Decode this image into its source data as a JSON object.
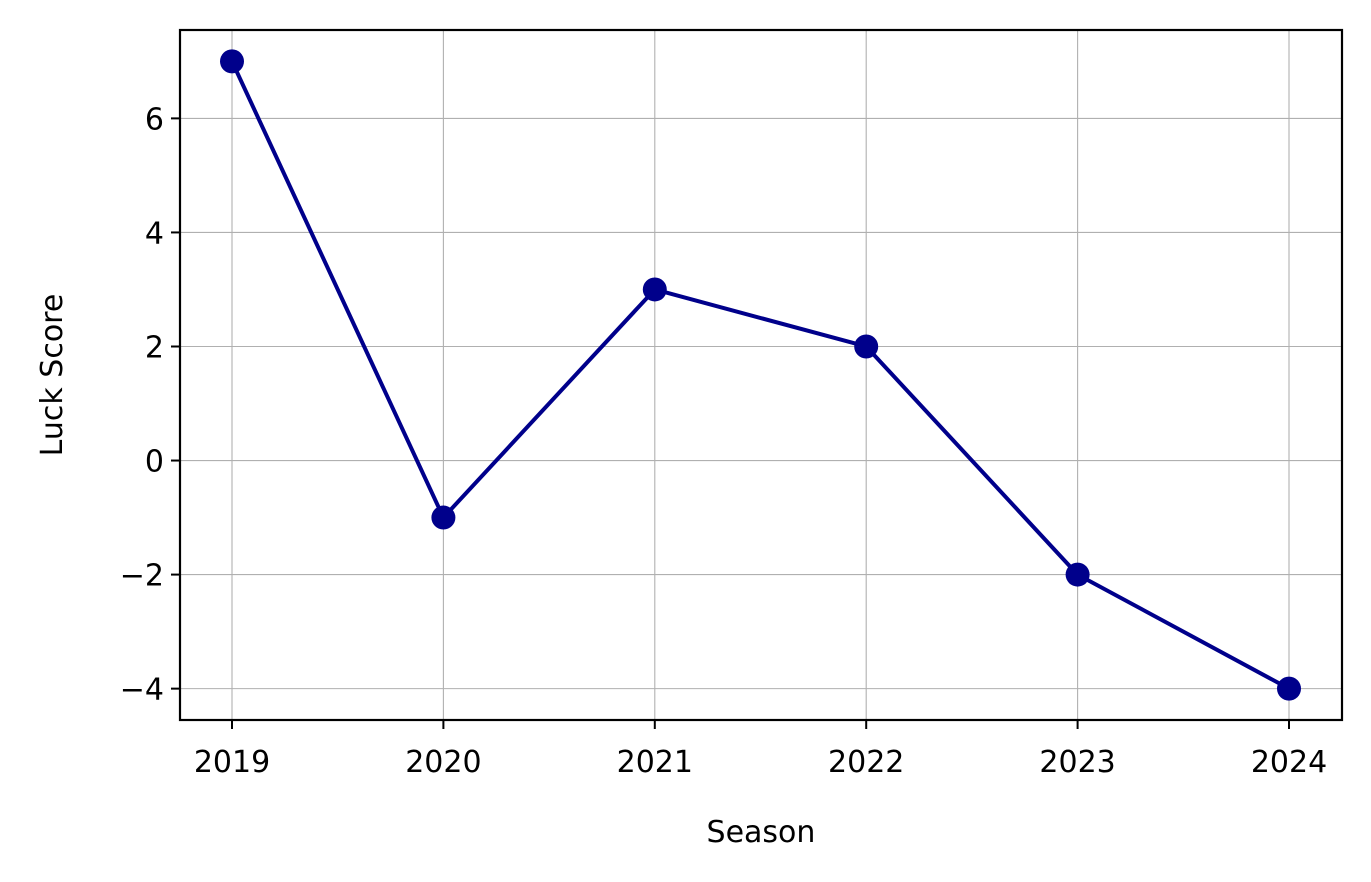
{
  "chart_data": {
    "type": "line",
    "title": "",
    "xlabel": "Season",
    "ylabel": "Luck Score",
    "categories": [
      "2019",
      "2020",
      "2021",
      "2022",
      "2023",
      "2024"
    ],
    "series": [
      {
        "values": [
          7,
          -1,
          3,
          2,
          -2,
          -4
        ],
        "color": "#00008b",
        "marker": "circle"
      }
    ],
    "ylim": [
      -4.55,
      7.55
    ],
    "yticks": [
      -4,
      -2,
      0,
      2,
      4,
      6
    ],
    "ytick_labels": [
      "−4",
      "−2",
      "0",
      "2",
      "4",
      "6"
    ],
    "grid": true,
    "legend": false
  }
}
